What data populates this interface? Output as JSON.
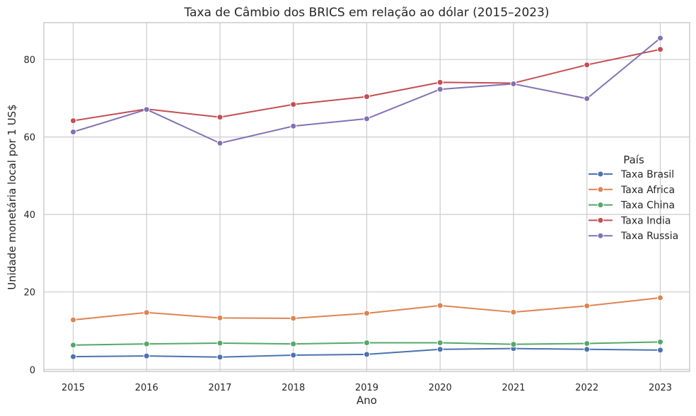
{
  "chart_data": {
    "type": "line",
    "title": "Taxa de Câmbio dos BRICS em relação ao dólar (2015–2023)",
    "xlabel": "Ano",
    "ylabel": "Unidade monetária local por 1 US$",
    "x": [
      2015,
      2016,
      2017,
      2018,
      2019,
      2020,
      2021,
      2022,
      2023
    ],
    "xlim": [
      2014.6,
      2023.4
    ],
    "ylim": [
      -0.5,
      89.5
    ],
    "yticks": [
      0,
      20,
      40,
      60,
      80
    ],
    "grid": true,
    "legend": {
      "title": "País",
      "placement": "center-right"
    },
    "series": [
      {
        "name": "Taxa Brasil",
        "color": "#4c72b0",
        "values": [
          3.3,
          3.5,
          3.2,
          3.7,
          3.9,
          5.2,
          5.4,
          5.2,
          5.0
        ]
      },
      {
        "name": "Taxa Africa",
        "color": "#dd8452",
        "values": [
          12.8,
          14.7,
          13.3,
          13.2,
          14.5,
          16.5,
          14.8,
          16.4,
          18.5
        ]
      },
      {
        "name": "Taxa China",
        "color": "#55a868",
        "values": [
          6.3,
          6.6,
          6.8,
          6.6,
          6.9,
          6.9,
          6.5,
          6.7,
          7.1
        ]
      },
      {
        "name": "Taxa India",
        "color": "#c44e52",
        "values": [
          64.2,
          67.2,
          65.1,
          68.4,
          70.4,
          74.1,
          73.9,
          78.6,
          82.6
        ]
      },
      {
        "name": "Taxa Russia",
        "color": "#8172b3",
        "values": [
          61.3,
          67.1,
          58.4,
          62.8,
          64.7,
          72.3,
          73.7,
          69.9,
          85.5
        ]
      }
    ]
  }
}
